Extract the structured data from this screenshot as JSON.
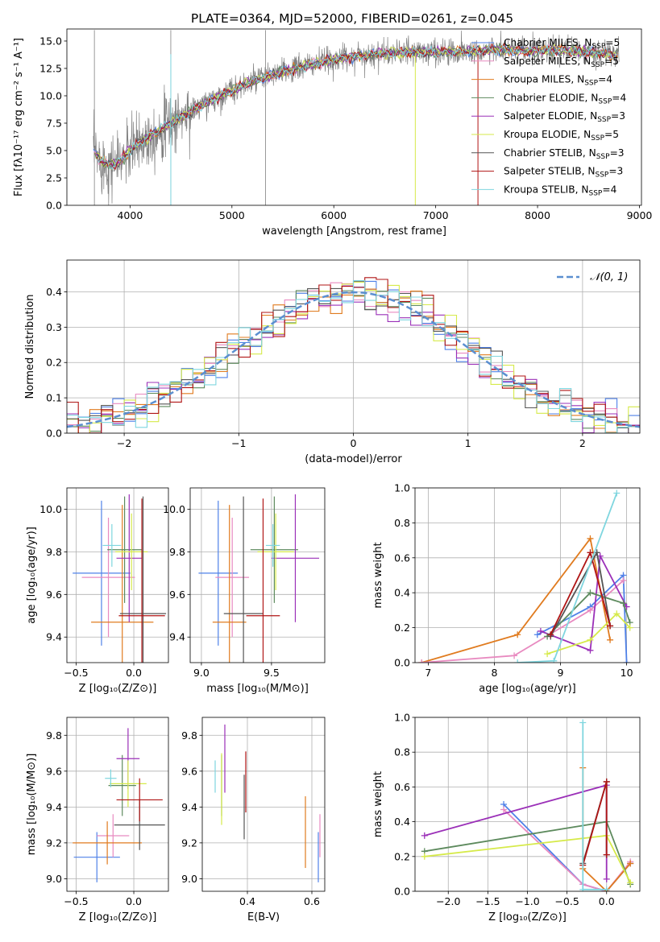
{
  "page_title": "PLATE=0364, MJD=52000, FIBERID=0261, z=0.045",
  "colors": {
    "Chabrier MILES": "#4f81e8",
    "Salpeter MILES": "#e88ac0",
    "Kroupa MILES": "#e07b1f",
    "Chabrier ELODIE": "#5d8a5d",
    "Salpeter ELODIE": "#9b30b8",
    "Kroupa ELODIE": "#d6ea4a",
    "Chabrier STELIB": "#555555",
    "Salpeter STELIB": "#b01515",
    "Kroupa STELIB": "#7fd6df",
    "data": "#808080",
    "normal": "#5b8fd0"
  },
  "chart_data": [
    {
      "id": "spectrum",
      "type": "line",
      "title": "PLATE=0364, MJD=52000, FIBERID=0261, z=0.045",
      "xlabel": "wavelength [Angstrom, rest frame]",
      "ylabel": "Flux [fλ10⁻¹⁷ erg cm⁻² s⁻¹ A⁻¹]",
      "xlim": [
        3380,
        9020
      ],
      "ylim": [
        0,
        16.1
      ],
      "xticks": [
        "4000",
        "5000",
        "6000",
        "7000",
        "8000",
        "9000"
      ],
      "yticks": [
        "0.0",
        "2.5",
        "5.0",
        "7.5",
        "10.0",
        "12.5",
        "15.0"
      ],
      "grid": false,
      "legend": "top-right",
      "legend_entries": [
        {
          "name": "Chabrier MILES",
          "label": "Chabrier MILES, N",
          "sub": "SSP",
          "tail": "=5"
        },
        {
          "name": "Salpeter MILES",
          "label": "Salpeter MILES, N",
          "sub": "SSP",
          "tail": "=5"
        },
        {
          "name": "Kroupa MILES",
          "label": "Kroupa MILES, N",
          "sub": "SSP",
          "tail": "=4"
        },
        {
          "name": "Chabrier ELODIE",
          "label": "Chabrier ELODIE, N",
          "sub": "SSP",
          "tail": "=4"
        },
        {
          "name": "Salpeter ELODIE",
          "label": "Salpeter ELODIE, N",
          "sub": "SSP",
          "tail": "=3"
        },
        {
          "name": "Kroupa ELODIE",
          "label": "Kroupa ELODIE, N",
          "sub": "SSP",
          "tail": "=5"
        },
        {
          "name": "Chabrier STELIB",
          "label": "Chabrier STELIB, N",
          "sub": "SSP",
          "tail": "=3"
        },
        {
          "name": "Salpeter STELIB",
          "label": "Salpeter STELIB, N",
          "sub": "SSP",
          "tail": "=3"
        },
        {
          "name": "Kroupa STELIB",
          "label": "Kroupa STELIB, N",
          "sub": "SSP",
          "tail": "=4"
        }
      ],
      "continuum": {
        "x": [
          3650,
          3700,
          3800,
          3900,
          4000,
          4100,
          4200,
          4400,
          4600,
          4800,
          5000,
          5200,
          5400,
          5600,
          5800,
          6000,
          6200,
          6400,
          6600,
          6800,
          7000,
          7200,
          7400,
          7600,
          7800,
          8000,
          8200,
          8400,
          8600,
          8800
        ],
        "y": [
          4.8,
          4.2,
          3.6,
          4.0,
          5.0,
          5.8,
          6.4,
          7.5,
          8.6,
          9.6,
          10.5,
          11.3,
          11.9,
          12.4,
          12.9,
          13.3,
          13.6,
          13.8,
          13.9,
          14.0,
          14.0,
          14.0,
          14.1,
          14.2,
          14.1,
          14.1,
          14.2,
          14.0,
          13.9,
          13.7
        ]
      }
    },
    {
      "id": "residuals",
      "type": "bar",
      "xlabel": "(data-model)/error",
      "ylabel": "Normed distribution",
      "xlim": [
        -2.5,
        2.5
      ],
      "ylim": [
        0,
        0.49
      ],
      "xticks": [
        "−2",
        "−1",
        "0",
        "1",
        "2"
      ],
      "yticks": [
        "0.0",
        "0.1",
        "0.2",
        "0.3",
        "0.4"
      ],
      "grid": true,
      "legend": "top-right",
      "legend_entries": [
        {
          "name": "normal",
          "label": "𝒩(0, 1)"
        }
      ],
      "bin_width": 0.1,
      "bin_start": -2.5
    },
    {
      "id": "age_vs_Z",
      "type": "scatter",
      "xlabel": "Z [log₁₀(Z/Z⊙)]",
      "ylabel": "age  [log₁₀(age/yr)]",
      "xlim": [
        -0.58,
        0.3
      ],
      "ylim": [
        9.28,
        10.1
      ],
      "xticks": [
        "−0.5",
        "0.0"
      ],
      "yticks": [
        "9.4",
        "9.6",
        "9.8",
        "10.0"
      ],
      "grid": true,
      "crosses": [
        {
          "model": "Chabrier MILES",
          "x": -0.28,
          "y": 9.7,
          "xerr": 0.25,
          "yerr": 0.34
        },
        {
          "model": "Salpeter MILES",
          "x": -0.22,
          "y": 9.68,
          "xerr": 0.23,
          "yerr": 0.28
        },
        {
          "model": "Kroupa MILES",
          "x": -0.1,
          "y": 9.47,
          "xerr": 0.27,
          "yerr": 0.55
        },
        {
          "model": "Chabrier ELODIE",
          "x": -0.08,
          "y": 9.81,
          "xerr": 0.15,
          "yerr": 0.25
        },
        {
          "model": "Salpeter ELODIE",
          "x": -0.04,
          "y": 9.77,
          "xerr": 0.11,
          "yerr": 0.3
        },
        {
          "model": "Kroupa ELODIE",
          "x": -0.02,
          "y": 9.8,
          "xerr": 0.14,
          "yerr": 0.18
        },
        {
          "model": "Chabrier STELIB",
          "x": 0.08,
          "y": 9.51,
          "xerr": 0.2,
          "yerr": 0.55
        },
        {
          "model": "Salpeter STELIB",
          "x": 0.07,
          "y": 9.5,
          "xerr": 0.2,
          "yerr": 0.55
        },
        {
          "model": "Kroupa STELIB",
          "x": -0.19,
          "y": 9.83,
          "xerr": 0.08,
          "yerr": 0.1
        }
      ]
    },
    {
      "id": "age_vs_mass",
      "type": "scatter",
      "xlabel": "mass [log₁₀(M/M⊙)]",
      "ylabel": "",
      "xlim": [
        8.92,
        9.88
      ],
      "ylim": [
        9.28,
        10.1
      ],
      "xticks": [
        "9.0",
        "9.5"
      ],
      "yticks": [
        "9.4",
        "9.6",
        "9.8",
        "10.0"
      ],
      "grid": true,
      "crosses": [
        {
          "model": "Chabrier MILES",
          "x": 9.12,
          "y": 9.7,
          "xerr": 0.14,
          "yerr": 0.34
        },
        {
          "model": "Salpeter MILES",
          "x": 9.22,
          "y": 9.68,
          "xerr": 0.12,
          "yerr": 0.28
        },
        {
          "model": "Kroupa MILES",
          "x": 9.2,
          "y": 9.47,
          "xerr": 0.12,
          "yerr": 0.55
        },
        {
          "model": "Chabrier ELODIE",
          "x": 9.52,
          "y": 9.81,
          "xerr": 0.17,
          "yerr": 0.25
        },
        {
          "model": "Salpeter ELODIE",
          "x": 9.67,
          "y": 9.77,
          "xerr": 0.17,
          "yerr": 0.3
        },
        {
          "model": "Kroupa ELODIE",
          "x": 9.53,
          "y": 9.8,
          "xerr": 0.13,
          "yerr": 0.18
        },
        {
          "model": "Chabrier STELIB",
          "x": 9.3,
          "y": 9.51,
          "xerr": 0.14,
          "yerr": 0.55
        },
        {
          "model": "Salpeter STELIB",
          "x": 9.44,
          "y": 9.5,
          "xerr": 0.12,
          "yerr": 0.55
        },
        {
          "model": "Kroupa STELIB",
          "x": 9.51,
          "y": 9.83,
          "xerr": 0.05,
          "yerr": 0.1
        }
      ]
    },
    {
      "id": "weight_vs_age",
      "type": "line",
      "xlabel": "age  [log₁₀(age/yr)]",
      "ylabel": "mass weight",
      "xlim": [
        6.8,
        10.2
      ],
      "ylim": [
        0,
        1.0
      ],
      "xticks": [
        "7",
        "8",
        "9",
        "10"
      ],
      "yticks": [
        "0.0",
        "0.2",
        "0.4",
        "0.6",
        "0.8",
        "1.0"
      ],
      "grid": true,
      "series": [
        {
          "model": "Kroupa MILES",
          "x": [
            6.9,
            8.35,
            9.45,
            9.75
          ],
          "y": [
            0.0,
            0.16,
            0.71,
            0.13
          ]
        },
        {
          "model": "Chabrier MILES",
          "x": [
            8.65,
            9.45,
            9.95,
            10.0
          ],
          "y": [
            0.16,
            0.32,
            0.5,
            0.0
          ]
        },
        {
          "model": "Salpeter MILES",
          "x": [
            6.9,
            8.3,
            9.45,
            9.95
          ],
          "y": [
            0.0,
            0.04,
            0.3,
            0.47
          ]
        },
        {
          "model": "Salpeter ELODIE",
          "x": [
            8.7,
            9.45,
            9.6,
            10.0
          ],
          "y": [
            0.18,
            0.07,
            0.61,
            0.32
          ]
        },
        {
          "model": "Chabrier ELODIE",
          "x": [
            8.8,
            9.45,
            9.95,
            10.05
          ],
          "y": [
            0.15,
            0.4,
            0.34,
            0.23
          ]
        },
        {
          "model": "Kroupa ELODIE",
          "x": [
            8.8,
            9.45,
            9.85,
            10.05
          ],
          "y": [
            0.05,
            0.13,
            0.28,
            0.2
          ]
        },
        {
          "model": "Chabrier STELIB",
          "x": [
            8.85,
            9.55,
            9.75
          ],
          "y": [
            0.15,
            0.63,
            0.21
          ]
        },
        {
          "model": "Salpeter STELIB",
          "x": [
            8.85,
            9.45,
            9.75
          ],
          "y": [
            0.16,
            0.63,
            0.21
          ]
        },
        {
          "model": "Kroupa STELIB",
          "x": [
            8.35,
            8.9,
            9.85
          ],
          "y": [
            0.0,
            0.01,
            0.97
          ]
        }
      ]
    },
    {
      "id": "mass_vs_Z",
      "type": "scatter",
      "xlabel": "Z [log₁₀(Z/Z⊙)]",
      "ylabel": "mass [log₁₀(M/M⊙)]",
      "xlim": [
        -0.58,
        0.3
      ],
      "ylim": [
        8.93,
        9.9
      ],
      "xticks": [
        "−0.5",
        "0.0"
      ],
      "yticks": [
        "9.0",
        "9.2",
        "9.4",
        "9.6",
        "9.8"
      ],
      "grid": true,
      "crosses": [
        {
          "model": "Chabrier MILES",
          "x": -0.32,
          "y": 9.12,
          "xerr": 0.2,
          "yerr": 0.14
        },
        {
          "model": "Salpeter MILES",
          "x": -0.18,
          "y": 9.24,
          "xerr": 0.14,
          "yerr": 0.12
        },
        {
          "model": "Kroupa MILES",
          "x": -0.23,
          "y": 9.2,
          "xerr": 0.3,
          "yerr": 0.12
        },
        {
          "model": "Chabrier ELODIE",
          "x": -0.1,
          "y": 9.52,
          "xerr": 0.12,
          "yerr": 0.17
        },
        {
          "model": "Salpeter ELODIE",
          "x": -0.05,
          "y": 9.67,
          "xerr": 0.1,
          "yerr": 0.17
        },
        {
          "model": "Kroupa ELODIE",
          "x": -0.05,
          "y": 9.53,
          "xerr": 0.16,
          "yerr": 0.13
        },
        {
          "model": "Chabrier STELIB",
          "x": 0.05,
          "y": 9.3,
          "xerr": 0.22,
          "yerr": 0.14
        },
        {
          "model": "Salpeter STELIB",
          "x": 0.05,
          "y": 9.44,
          "xerr": 0.2,
          "yerr": 0.12
        },
        {
          "model": "Kroupa STELIB",
          "x": -0.2,
          "y": 9.56,
          "xerr": 0.05,
          "yerr": 0.05
        }
      ]
    },
    {
      "id": "mass_vs_ebv",
      "type": "scatter",
      "xlabel": "E(B-V)",
      "ylabel": "",
      "xlim": [
        0.26,
        0.64
      ],
      "ylim": [
        8.93,
        9.9
      ],
      "xticks": [
        "0.4",
        "0.6"
      ],
      "yticks": [
        "9.0",
        "9.2",
        "9.4",
        "9.6",
        "9.8"
      ],
      "grid": true,
      "crosses": [
        {
          "model": "Chabrier MILES",
          "x": 0.62,
          "y": 9.12,
          "xerr": 0,
          "yerr": 0.14
        },
        {
          "model": "Salpeter MILES",
          "x": 0.625,
          "y": 9.24,
          "xerr": 0,
          "yerr": 0.12
        },
        {
          "model": "Kroupa MILES",
          "x": 0.58,
          "y": 9.26,
          "xerr": 0,
          "yerr": 0.2
        },
        {
          "model": "Chabrier ELODIE",
          "x": 0.32,
          "y": 9.52,
          "xerr": 0,
          "yerr": 0.17
        },
        {
          "model": "Salpeter ELODIE",
          "x": 0.33,
          "y": 9.67,
          "xerr": 0,
          "yerr": 0.19
        },
        {
          "model": "Kroupa ELODIE",
          "x": 0.32,
          "y": 9.5,
          "xerr": 0,
          "yerr": 0.2
        },
        {
          "model": "Chabrier STELIB",
          "x": 0.39,
          "y": 9.4,
          "xerr": 0,
          "yerr": 0.18
        },
        {
          "model": "Salpeter STELIB",
          "x": 0.395,
          "y": 9.54,
          "xerr": 0,
          "yerr": 0.17
        },
        {
          "model": "Kroupa STELIB",
          "x": 0.3,
          "y": 9.57,
          "xerr": 0,
          "yerr": 0.09
        }
      ]
    },
    {
      "id": "weight_vs_Z",
      "type": "line",
      "xlabel": "Z [log₁₀(Z/Z⊙)]",
      "ylabel": "mass weight",
      "xlim": [
        -2.42,
        0.42
      ],
      "ylim": [
        0,
        1.0
      ],
      "xticks": [
        "−2.0",
        "−1.5",
        "−1.0",
        "−0.5",
        "0.0"
      ],
      "yticks": [
        "0.0",
        "0.2",
        "0.4",
        "0.6",
        "0.8",
        "1.0"
      ],
      "grid": true,
      "series": [
        {
          "model": "Chabrier MILES",
          "x": [
            -1.3,
            -0.3,
            0.0,
            0.3
          ],
          "y": [
            0.5,
            0.04,
            0.0,
            0.16
          ]
        },
        {
          "model": "Salpeter MILES",
          "x": [
            -1.3,
            -0.3,
            0.0,
            0.3
          ],
          "y": [
            0.47,
            0.04,
            0.0,
            0.17
          ]
        },
        {
          "model": "Kroupa MILES",
          "x": [
            -0.3,
            -0.3,
            0.0,
            0.3
          ],
          "y": [
            0.71,
            0.13,
            0.0,
            0.16
          ]
        },
        {
          "model": "Chabrier ELODIE",
          "x": [
            -2.3,
            0.0,
            0.3
          ],
          "y": [
            0.23,
            0.4,
            0.04
          ]
        },
        {
          "model": "Salpeter ELODIE",
          "x": [
            -2.3,
            0.0,
            0.0
          ],
          "y": [
            0.32,
            0.61,
            0.07
          ]
        },
        {
          "model": "Kroupa ELODIE",
          "x": [
            -2.3,
            0.0,
            0.3
          ],
          "y": [
            0.2,
            0.32,
            0.05
          ]
        },
        {
          "model": "Chabrier STELIB",
          "x": [
            -0.3,
            0.0,
            0.0
          ],
          "y": [
            0.16,
            0.63,
            0.21
          ]
        },
        {
          "model": "Salpeter STELIB",
          "x": [
            -0.3,
            0.0,
            0.0
          ],
          "y": [
            0.15,
            0.63,
            0.21
          ]
        },
        {
          "model": "Kroupa STELIB",
          "x": [
            -0.3,
            -0.3,
            0.0
          ],
          "y": [
            0.97,
            0.01,
            0.01
          ]
        }
      ]
    }
  ]
}
